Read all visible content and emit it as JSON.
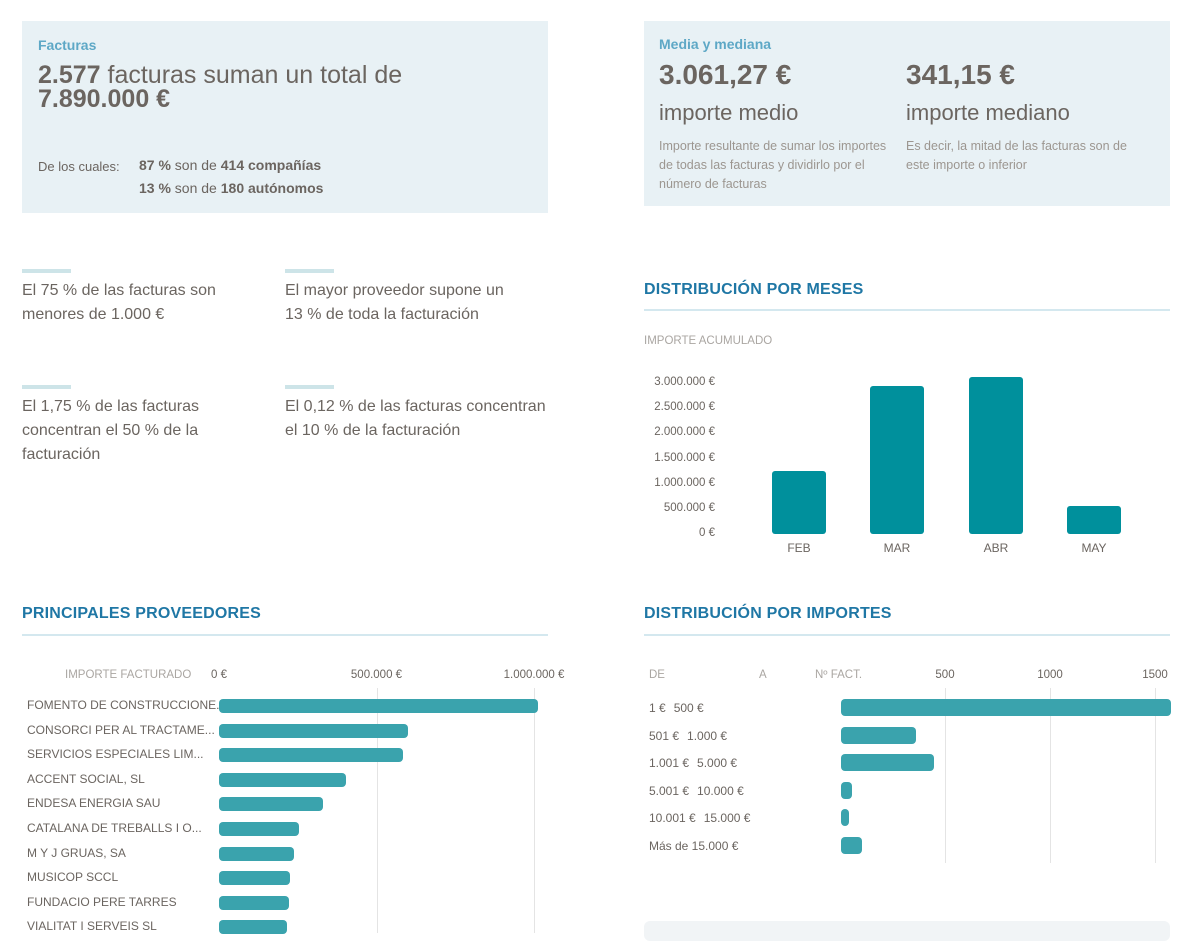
{
  "facturas_card": {
    "label": "Facturas",
    "count": "2.577",
    "headline_rest": " facturas suman un total de",
    "total": "7.890.000 €",
    "breakdown_label": "De los cuales:",
    "breakdown": [
      {
        "pct": "87 %",
        "mid": " son de ",
        "entity": "414 compañías"
      },
      {
        "pct": "13 %",
        "mid": " son de ",
        "entity": "180 autónomos"
      }
    ]
  },
  "media_card": {
    "label": "Media y mediana",
    "mean_value": "3.061,27 €",
    "mean_label": "importe medio",
    "mean_desc": "Importe resultante de sumar los importes de todas las facturas y dividirlo por el número de facturas",
    "median_value": "341,15 €",
    "median_label": "importe mediano",
    "median_desc": "Es decir, la mitad de las facturas son de este importe o inferior"
  },
  "facts": [
    "El 75 % de las facturas son menores de 1.000 €",
    "El mayor proveedor supone un 13 % de toda la facturación",
    "El 1,75 % de las facturas concentran el 50 % de la facturación",
    "El 0,12 % de las facturas concentran el 10 % de la facturación"
  ],
  "colors": {
    "accent": "#1f77a5",
    "bar_months": "#00909c",
    "bar_h": "#3aa3ad",
    "card_bg": "#e8f1f5"
  },
  "chart_data": [
    {
      "id": "months",
      "type": "bar",
      "title": "DISTRIBUCIÓN POR MESES",
      "ylabel": "IMPORTE ACUMULADO",
      "xlabel": "",
      "categories": [
        "FEB",
        "MAR",
        "ABR",
        "MAY"
      ],
      "values": [
        1250000,
        2940000,
        3120000,
        560000
      ],
      "ylim": [
        0,
        3000000
      ],
      "yticks": [
        0,
        500000,
        1000000,
        1500000,
        2000000,
        2500000,
        3000000
      ],
      "ytick_labels": [
        "0 €",
        "500.000 €",
        "1.000.000 €",
        "1.500.000 €",
        "2.000.000 €",
        "2.500.000 €",
        "3.000.000 €"
      ],
      "grid": false
    },
    {
      "id": "providers",
      "type": "bar",
      "orientation": "horizontal",
      "title": "PRINCIPALES PROVEEDORES",
      "xlabel": "IMPORTE FACTURADO",
      "categories": [
        "FOMENTO DE CONSTRUCCIONE...",
        "CONSORCI PER AL TRACTAME...",
        "SERVICIOS ESPECIALES LIM...",
        "ACCENT SOCIAL, SL",
        "ENDESA ENERGIA SAU",
        "CATALANA DE TREBALLS I O...",
        "M Y J GRUAS, SA",
        "MUSICOP SCCL",
        "FUNDACIO PERE TARRES",
        "VIALITAT I SERVEIS SL"
      ],
      "values": [
        1013000,
        600000,
        584000,
        403000,
        330000,
        254000,
        238000,
        225000,
        222000,
        216000
      ],
      "xlim": [
        0,
        1000000
      ],
      "xticks": [
        0,
        500000,
        1000000
      ],
      "xtick_labels": [
        "0 €",
        "500.000 €",
        "1.000.000 €"
      ],
      "grid": true
    },
    {
      "id": "amounts",
      "type": "bar",
      "orientation": "horizontal",
      "title": "DISTRIBUCIÓN POR IMPORTES",
      "columns": [
        "DE",
        "A",
        "Nº FACT."
      ],
      "rows": [
        {
          "from": "1 €",
          "to": "500 €"
        },
        {
          "from": "501 €",
          "to": "1.000 €"
        },
        {
          "from": "1.001 €",
          "to": "5.000 €"
        },
        {
          "from": "5.001 €",
          "to": "10.000 €"
        },
        {
          "from": "10.001 €",
          "to": "15.000 €"
        },
        {
          "from": "Más de 15.000 €",
          "to": ""
        }
      ],
      "values": [
        1570,
        355,
        445,
        52,
        38,
        100
      ],
      "xlim": [
        0,
        1500
      ],
      "xticks": [
        500,
        1000,
        1500
      ],
      "xtick_labels": [
        "500",
        "1000",
        "1500"
      ],
      "grid": true
    }
  ]
}
